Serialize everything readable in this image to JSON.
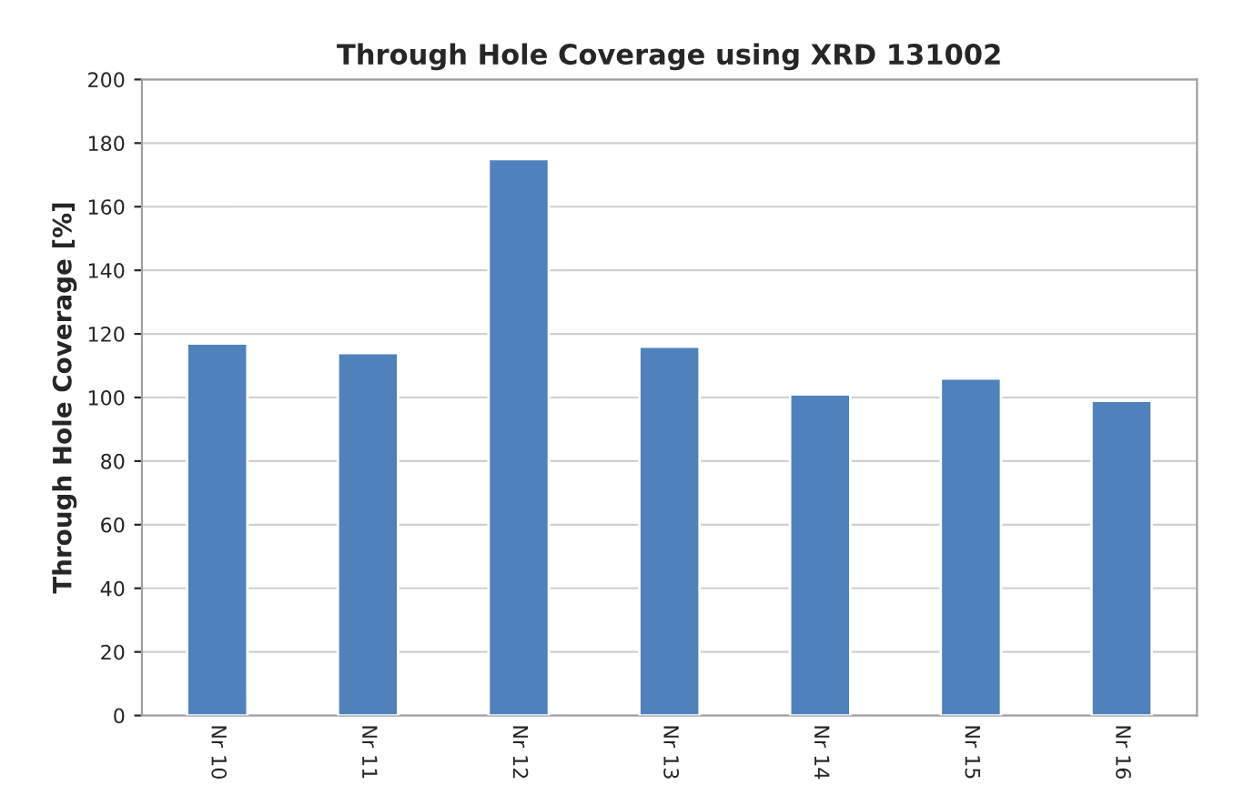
{
  "chart_data": {
    "type": "bar",
    "title": "Through Hole Coverage using XRD 131002",
    "ylabel": "Through Hole Coverage [%]",
    "categories": [
      "Nr 10",
      "Nr 11",
      "Nr 12",
      "Nr 13",
      "Nr 14",
      "Nr 15",
      "Nr 16"
    ],
    "values": [
      117,
      114,
      175,
      116,
      101,
      106,
      99
    ],
    "color": "#4f81bd",
    "ylim": [
      0,
      200
    ],
    "yticks": [
      0,
      20,
      40,
      60,
      80,
      100,
      120,
      140,
      160,
      180,
      200
    ],
    "grid": "y"
  }
}
